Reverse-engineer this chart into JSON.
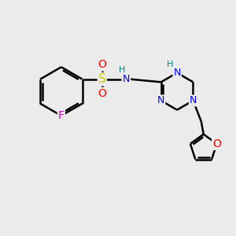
{
  "background_color": "#ebebeb",
  "bond_color": "#000000",
  "bond_width": 1.8,
  "figsize": [
    3.0,
    3.0
  ],
  "dpi": 100,
  "atom_colors": {
    "F": "#cc00cc",
    "S": "#cccc00",
    "O": "#ff0000",
    "N": "#0000ff",
    "H_teal": "#008080",
    "C": "#000000"
  }
}
